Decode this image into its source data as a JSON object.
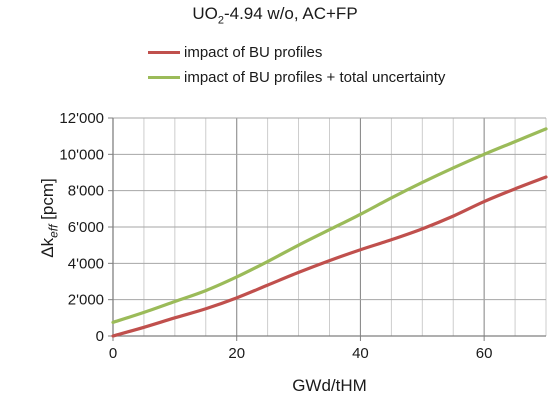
{
  "chart_data": {
    "type": "line",
    "title": {
      "prefix": "UO",
      "subscript": "2",
      "suffix": "-4.94 w/o, AC+FP"
    },
    "xlabel": "GWd/tHM",
    "ylabel": {
      "prefix": "Δk",
      "subscript": "eff",
      "suffix": " [pcm]"
    },
    "xlim": [
      0,
      70
    ],
    "ylim": [
      0,
      12000
    ],
    "x_ticks": [
      0,
      20,
      40,
      60
    ],
    "x_tick_labels": [
      "0",
      "20",
      "40",
      "60"
    ],
    "y_ticks": [
      0,
      2000,
      4000,
      6000,
      8000,
      10000,
      12000
    ],
    "y_tick_labels": [
      "0",
      "2'000",
      "4'000",
      "6'000",
      "8'000",
      "10'000",
      "12'000"
    ],
    "grid": true,
    "grid_minor_x_step": 5,
    "legend_position": "top",
    "series": [
      {
        "name": "impact of BU profiles",
        "color": "#c0504d",
        "x": [
          0,
          5,
          10,
          15,
          20,
          25,
          30,
          35,
          40,
          45,
          50,
          55,
          60,
          65,
          70
        ],
        "values": [
          0,
          480,
          1000,
          1500,
          2100,
          2800,
          3500,
          4150,
          4750,
          5300,
          5900,
          6600,
          7400,
          8100,
          8750
        ]
      },
      {
        "name": "impact of BU profiles + total uncertainty",
        "color": "#9bbb59",
        "x": [
          0,
          5,
          10,
          15,
          20,
          25,
          30,
          35,
          40,
          45,
          50,
          55,
          60,
          65,
          70
        ],
        "values": [
          750,
          1300,
          1900,
          2500,
          3250,
          4100,
          5000,
          5850,
          6700,
          7600,
          8450,
          9250,
          10000,
          10700,
          11400
        ]
      }
    ]
  }
}
